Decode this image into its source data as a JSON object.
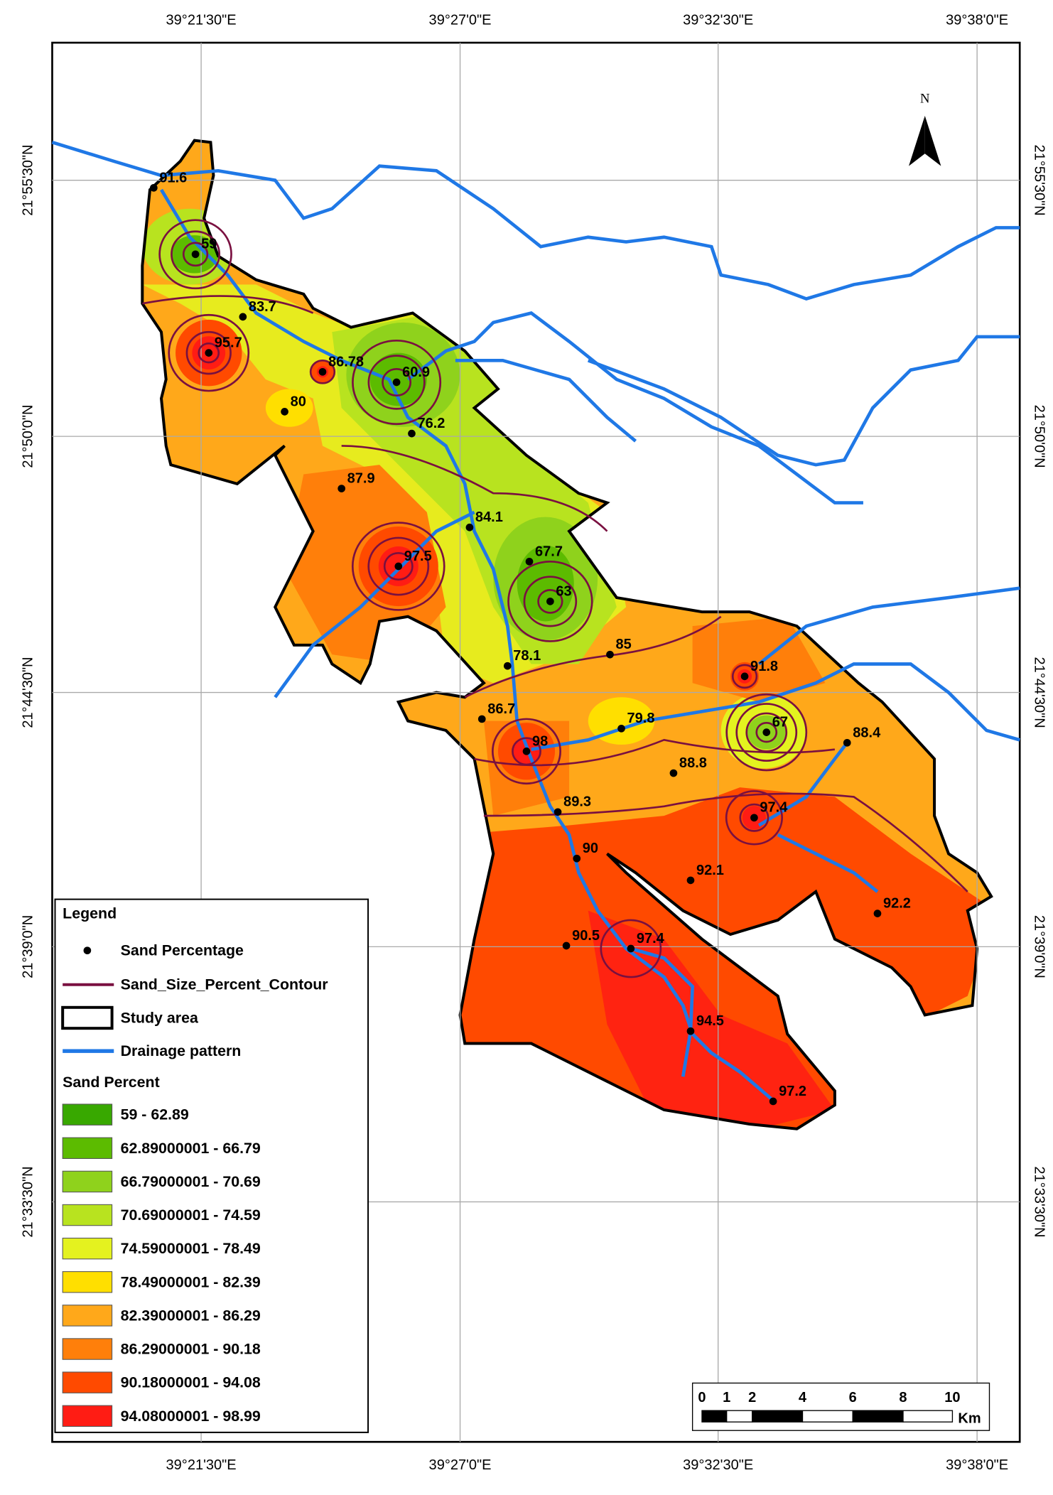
{
  "map": {
    "lon_labels": [
      "39°21'30\"E",
      "39°27'0\"E",
      "39°32'30\"E",
      "39°38'0\"E"
    ],
    "lat_labels": [
      "21°55'30\"N",
      "21°50'0\"N",
      "21°44'30\"N",
      "21°39'0\"N",
      "21°33'30\"N"
    ],
    "north": "N",
    "points": [
      "91.6",
      "59",
      "83.7",
      "95.7",
      "86.78",
      "60.9",
      "80",
      "76.2",
      "87.9",
      "84.1",
      "97.5",
      "67.7",
      "63",
      "85",
      "78.1",
      "91.8",
      "86.7",
      "79.8",
      "67",
      "88.4",
      "98",
      "88.8",
      "89.3",
      "97.4",
      "90",
      "92.1",
      "92.2",
      "90.5",
      "97.4",
      "94.5",
      "97.2"
    ],
    "legend": {
      "title": "Legend",
      "point_item": "Sand Percentage",
      "contour_item": "Sand_Size_Percent_Contour",
      "area_item": "Study area",
      "drainage_item": "Drainage pattern",
      "ramp_title": "Sand Percent",
      "classes": [
        {
          "label": "59 - 62.89",
          "color": "#38a800"
        },
        {
          "label": "62.89000001 - 66.79",
          "color": "#5cbb00"
        },
        {
          "label": "66.79000001 - 70.69",
          "color": "#8fd21c"
        },
        {
          "label": "70.69000001 - 74.59",
          "color": "#b8e31f"
        },
        {
          "label": "74.59000001 - 78.49",
          "color": "#e4f21f"
        },
        {
          "label": "78.49000001 - 82.39",
          "color": "#ffdf00"
        },
        {
          "label": "82.39000001 - 86.29",
          "color": "#ffa81a"
        },
        {
          "label": "86.29000001 - 90.18",
          "color": "#ff7f0a"
        },
        {
          "label": "90.18000001 - 94.08",
          "color": "#ff4a00"
        },
        {
          "label": "94.08000001 - 98.99",
          "color": "#ff1c14"
        }
      ]
    },
    "scale": {
      "ticks": [
        "0",
        "1",
        "2",
        "4",
        "6",
        "8",
        "10"
      ],
      "unit": "Km"
    }
  }
}
